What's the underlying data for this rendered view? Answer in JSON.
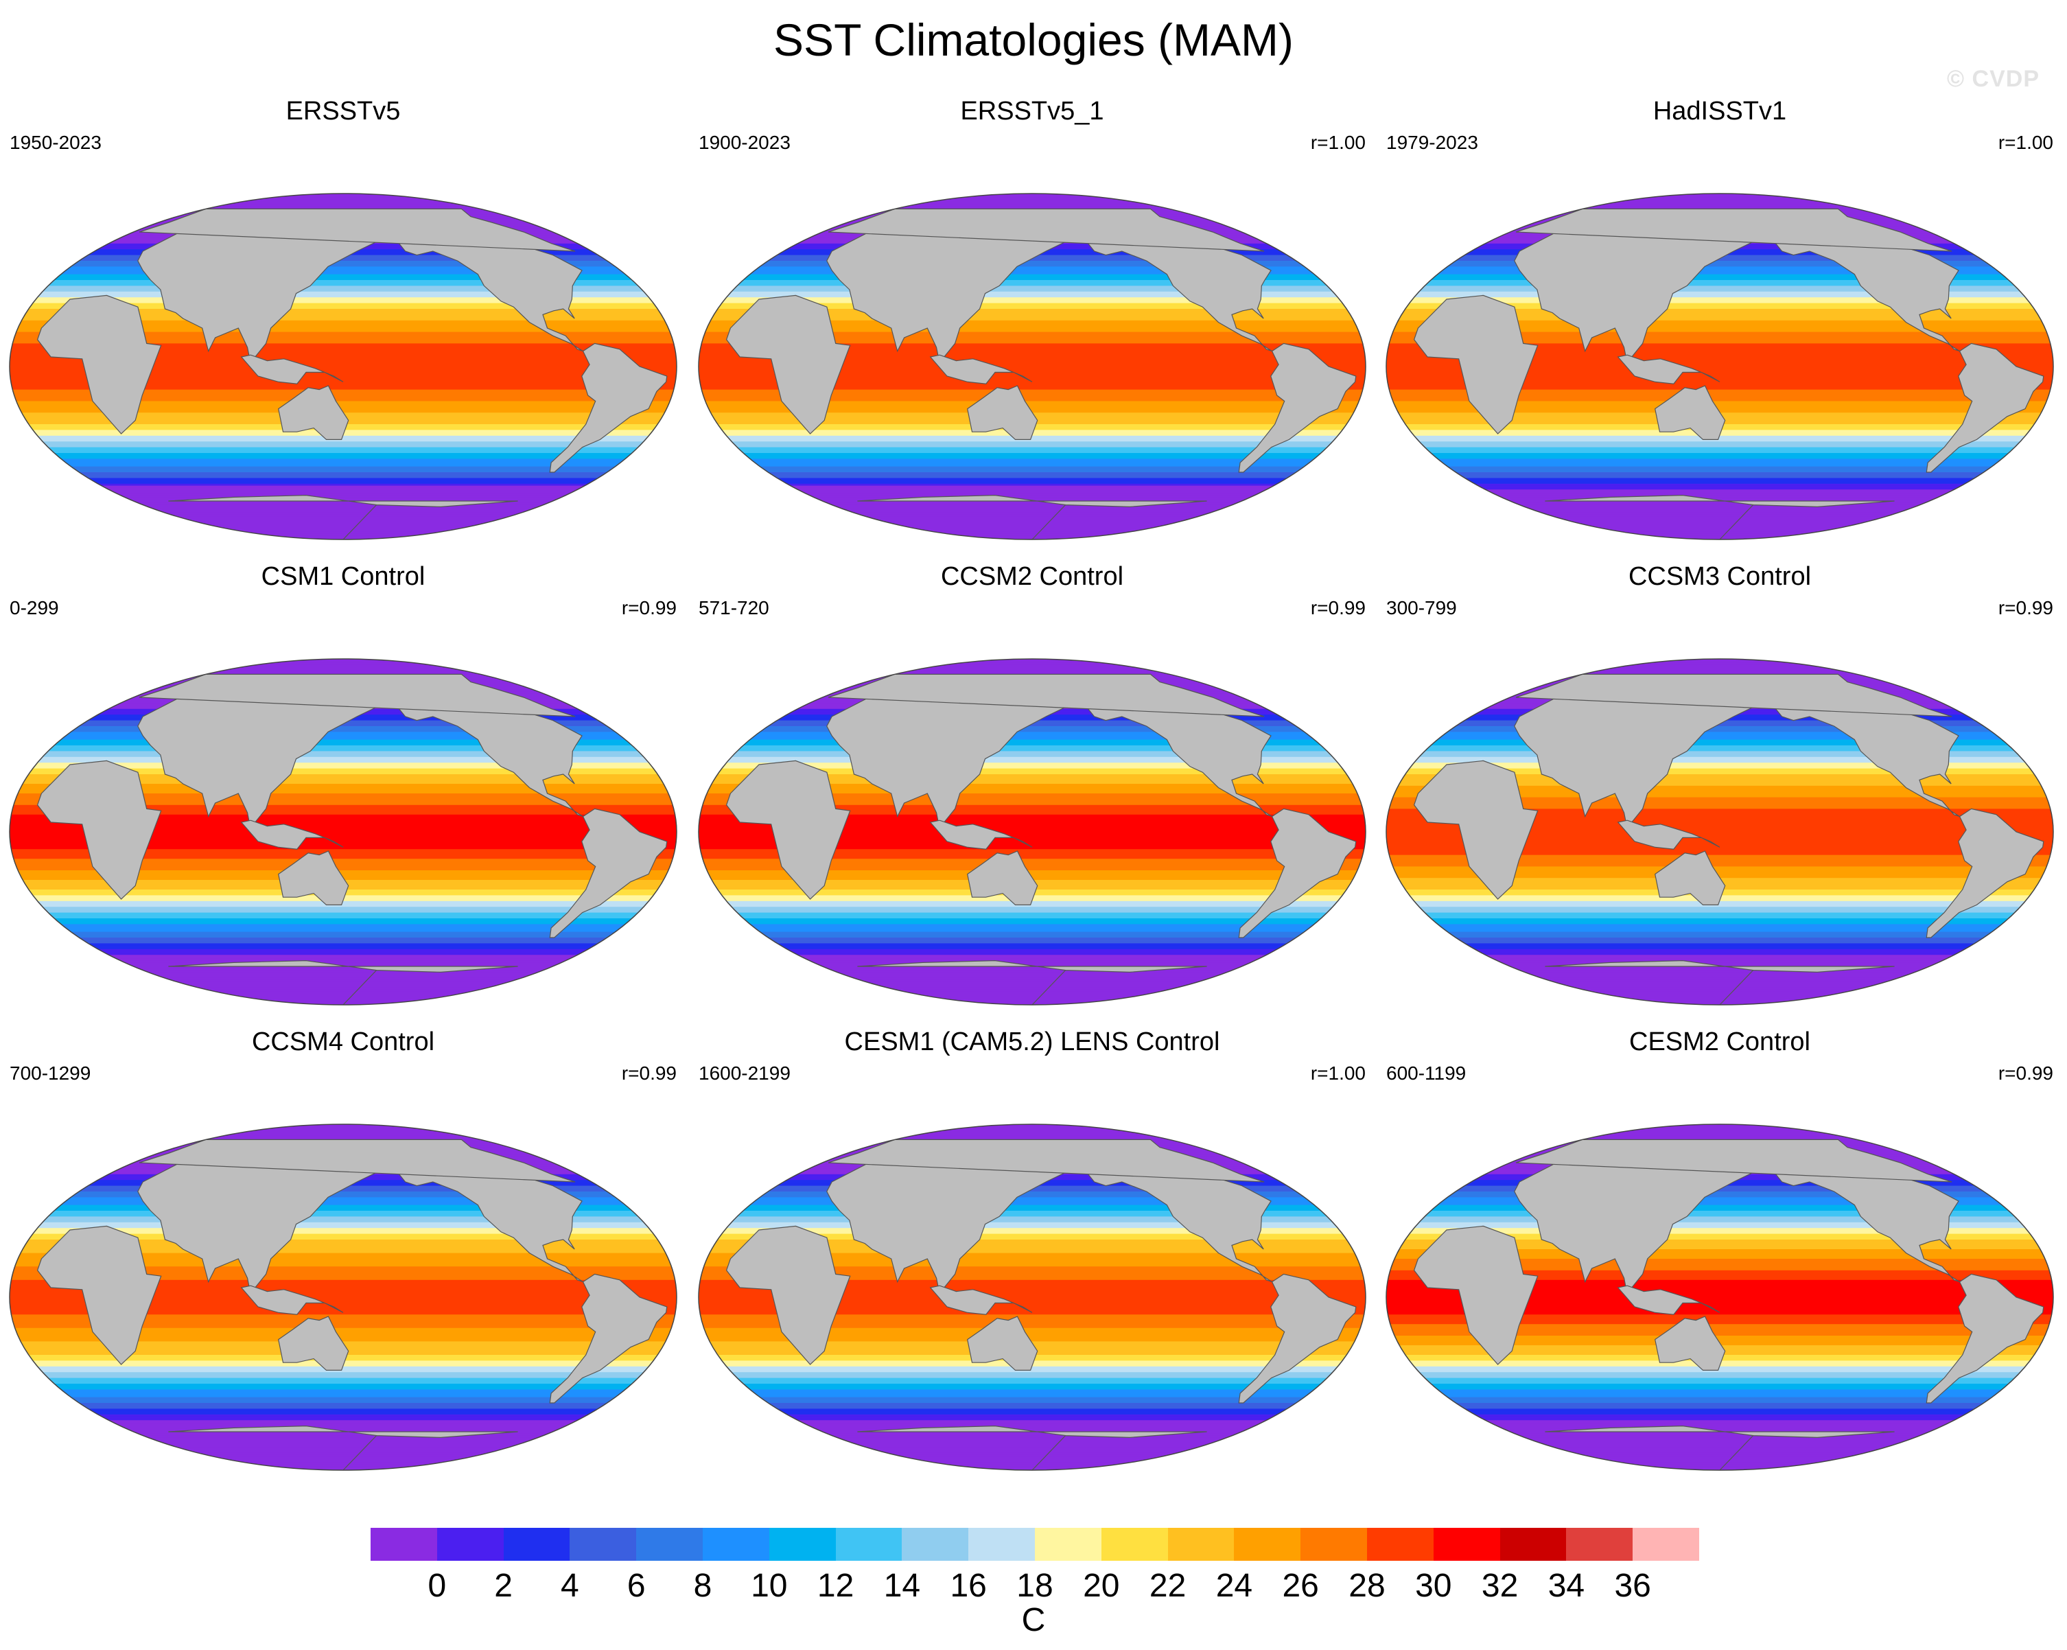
{
  "title": "SST Climatologies (MAM)",
  "watermark": "© CVDP",
  "chart_data": {
    "type": "heatmap",
    "projection": "Robinson global map, Pacific-centred",
    "variable": "Sea surface temperature climatology, March–May",
    "panels": [
      {
        "title": "ERSSTv5",
        "years": "1950-2023",
        "r": "",
        "warm_pool_max": 30,
        "south_limit_lat": -62
      },
      {
        "title": "ERSSTv5_1",
        "years": "1900-2023",
        "r": "r=1.00",
        "warm_pool_max": 30,
        "south_limit_lat": -62
      },
      {
        "title": "HadISSTv1",
        "years": "1979-2023",
        "r": "r=1.00",
        "warm_pool_max": 30,
        "south_limit_lat": -64
      },
      {
        "title": "CSM1 Control",
        "years": "0-299",
        "r": "r=0.99",
        "warm_pool_max": 31,
        "south_limit_lat": -64
      },
      {
        "title": "CCSM2 Control",
        "years": "571-720",
        "r": "r=0.99",
        "warm_pool_max": 31,
        "south_limit_lat": -64
      },
      {
        "title": "CCSM3 Control",
        "years": "300-799",
        "r": "r=0.99",
        "warm_pool_max": 30,
        "south_limit_lat": -70
      },
      {
        "title": "CCSM4 Control",
        "years": "700-1299",
        "r": "r=0.99",
        "warm_pool_max": 29,
        "south_limit_lat": -66
      },
      {
        "title": "CESM1 (CAM5.2) LENS Control",
        "years": "1600-2199",
        "r": "r=1.00",
        "warm_pool_max": 29,
        "south_limit_lat": -66
      },
      {
        "title": "CESM2 Control",
        "years": "600-1199",
        "r": "r=0.99",
        "warm_pool_max": 31,
        "south_limit_lat": -66
      }
    ],
    "colorbar": {
      "label": "C",
      "levels": [
        0,
        2,
        4,
        6,
        8,
        10,
        12,
        14,
        16,
        18,
        20,
        22,
        24,
        26,
        28,
        30,
        32,
        34,
        36
      ],
      "tick_labels": [
        "0",
        "2",
        "4",
        "6",
        "8",
        "10",
        "12",
        "14",
        "16",
        "18",
        "20",
        "22",
        "24",
        "26",
        "28",
        "30",
        "32",
        "34",
        "36"
      ],
      "colors": [
        "#8a2be2",
        "#4b1ff0",
        "#1f2ff0",
        "#3b5fe0",
        "#2f7ae8",
        "#1e90ff",
        "#00b2f0",
        "#40c4f4",
        "#90cdef",
        "#bfe0f4",
        "#fff6a0",
        "#ffe040",
        "#ffc020",
        "#ffa000",
        "#ff7a00",
        "#ff3c00",
        "#ff0000",
        "#cc0000",
        "#e0403c",
        "#ffb4b4"
      ]
    }
  }
}
